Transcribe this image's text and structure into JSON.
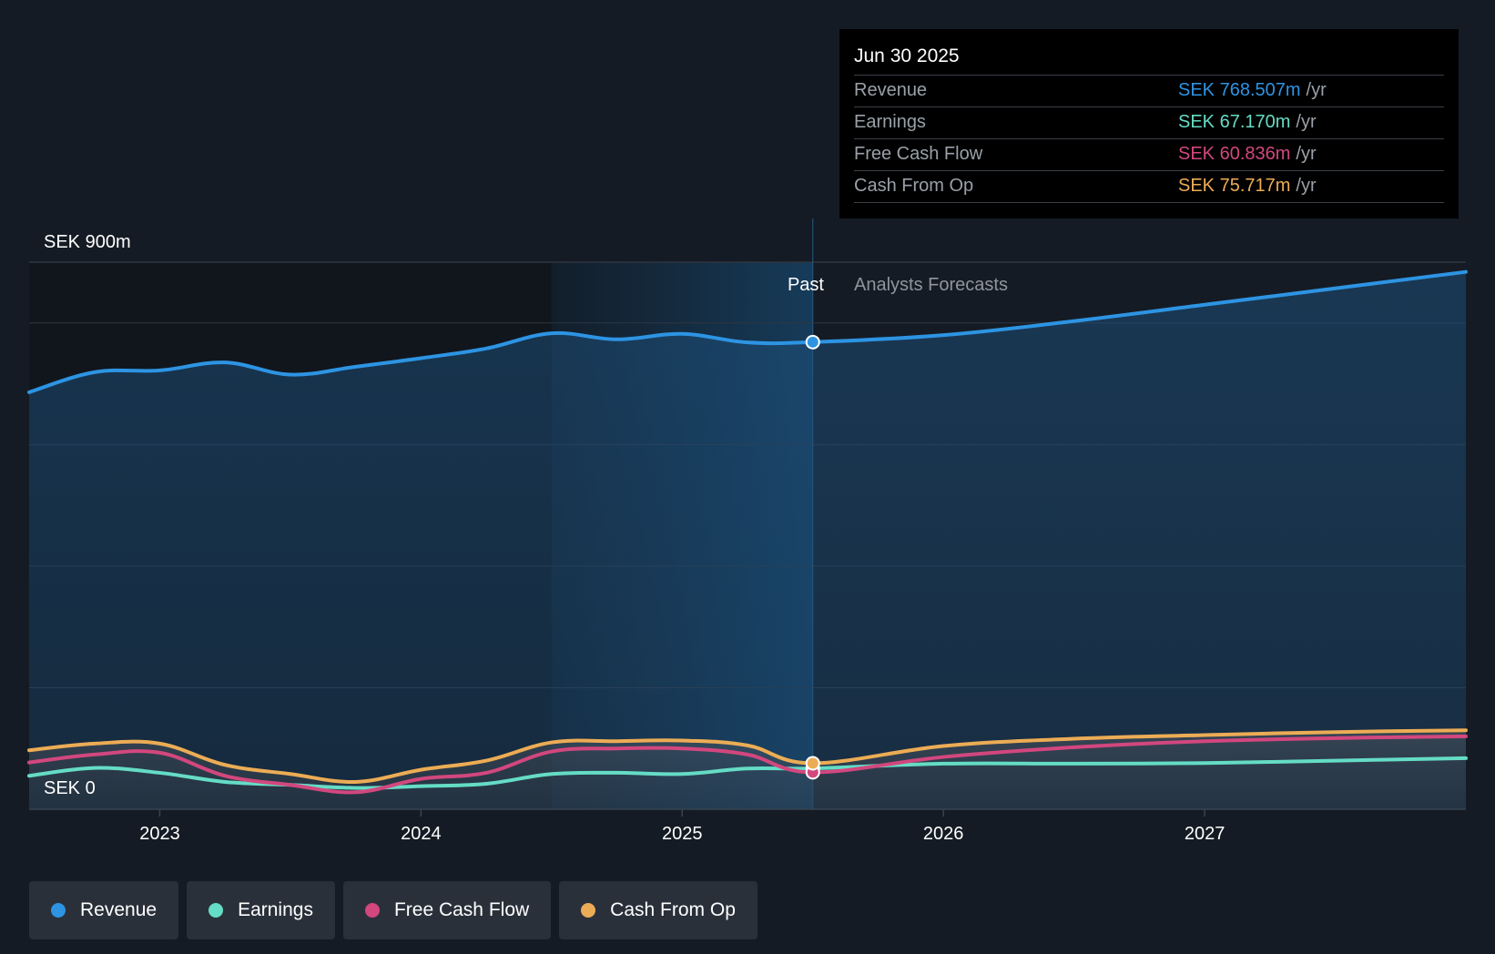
{
  "colors": {
    "revenue": "#2d94e3",
    "earnings": "#65dcc5",
    "fcf": "#d2477e",
    "cfo": "#ecac55",
    "background": "#151b24"
  },
  "tooltip": {
    "date": "Jun 30 2025",
    "rows": [
      {
        "label": "Revenue",
        "value": "SEK 768.507m",
        "unit": "/yr"
      },
      {
        "label": "Earnings",
        "value": "SEK 67.170m",
        "unit": "/yr"
      },
      {
        "label": "Free Cash Flow",
        "value": "SEK 60.836m",
        "unit": "/yr"
      },
      {
        "label": "Cash From Op",
        "value": "SEK 75.717m",
        "unit": "/yr"
      }
    ]
  },
  "legend": [
    {
      "label": "Revenue",
      "series": "revenue"
    },
    {
      "label": "Earnings",
      "series": "earnings"
    },
    {
      "label": "Free Cash Flow",
      "series": "fcf"
    },
    {
      "label": "Cash From Op",
      "series": "cfo"
    }
  ],
  "chart_data": {
    "type": "line",
    "title": "",
    "y_top_label": "SEK 900m",
    "y_bottom_label": "SEK 0",
    "ylim": [
      0,
      900
    ],
    "xlim": [
      2022.5,
      2028.0
    ],
    "x_ticks": [
      2023,
      2024,
      2025,
      2026,
      2027
    ],
    "x_tick_labels": [
      "2023",
      "2024",
      "2025",
      "2026",
      "2027"
    ],
    "past_label": "Past",
    "forecast_label": "Analysts Forecasts",
    "past_end": 2025.5,
    "highlight_start": 2024.5,
    "series": [
      {
        "name": "Revenue",
        "key": "revenue",
        "x": [
          2022.5,
          2022.75,
          2023.0,
          2023.25,
          2023.5,
          2023.75,
          2024.0,
          2024.25,
          2024.5,
          2024.75,
          2025.0,
          2025.25,
          2025.5,
          2026.0,
          2026.5,
          2027.0,
          2027.5,
          2028.0
        ],
        "values": [
          686,
          719,
          722,
          735,
          715,
          728,
          742,
          758,
          783,
          773,
          782,
          768,
          768.5,
          780,
          803,
          830,
          857,
          884
        ]
      },
      {
        "name": "Earnings",
        "key": "earnings",
        "x": [
          2022.5,
          2022.75,
          2023.0,
          2023.25,
          2023.5,
          2023.75,
          2024.0,
          2024.25,
          2024.5,
          2024.75,
          2025.0,
          2025.25,
          2025.5,
          2026.0,
          2026.5,
          2027.0,
          2027.5,
          2028.0
        ],
        "values": [
          55,
          68,
          60,
          45,
          40,
          35,
          38,
          42,
          58,
          60,
          58,
          67,
          67.2,
          75,
          75,
          76,
          80,
          84
        ]
      },
      {
        "name": "Free Cash Flow",
        "key": "fcf",
        "x": [
          2022.5,
          2022.75,
          2023.0,
          2023.25,
          2023.5,
          2023.75,
          2024.0,
          2024.25,
          2024.5,
          2024.75,
          2025.0,
          2025.25,
          2025.5,
          2026.0,
          2026.5,
          2027.0,
          2027.5,
          2028.0
        ],
        "values": [
          77,
          90,
          93,
          55,
          40,
          28,
          50,
          60,
          95,
          100,
          100,
          90,
          60.8,
          86,
          102,
          112,
          117,
          120
        ]
      },
      {
        "name": "Cash From Op",
        "key": "cfo",
        "x": [
          2022.5,
          2022.75,
          2023.0,
          2023.25,
          2023.5,
          2023.75,
          2024.0,
          2024.25,
          2024.5,
          2024.75,
          2025.0,
          2025.25,
          2025.5,
          2026.0,
          2026.5,
          2027.0,
          2027.5,
          2028.0
        ],
        "values": [
          97,
          108,
          108,
          73,
          58,
          45,
          65,
          80,
          110,
          112,
          113,
          105,
          75.7,
          104,
          116,
          122,
          127,
          130
        ]
      }
    ]
  }
}
